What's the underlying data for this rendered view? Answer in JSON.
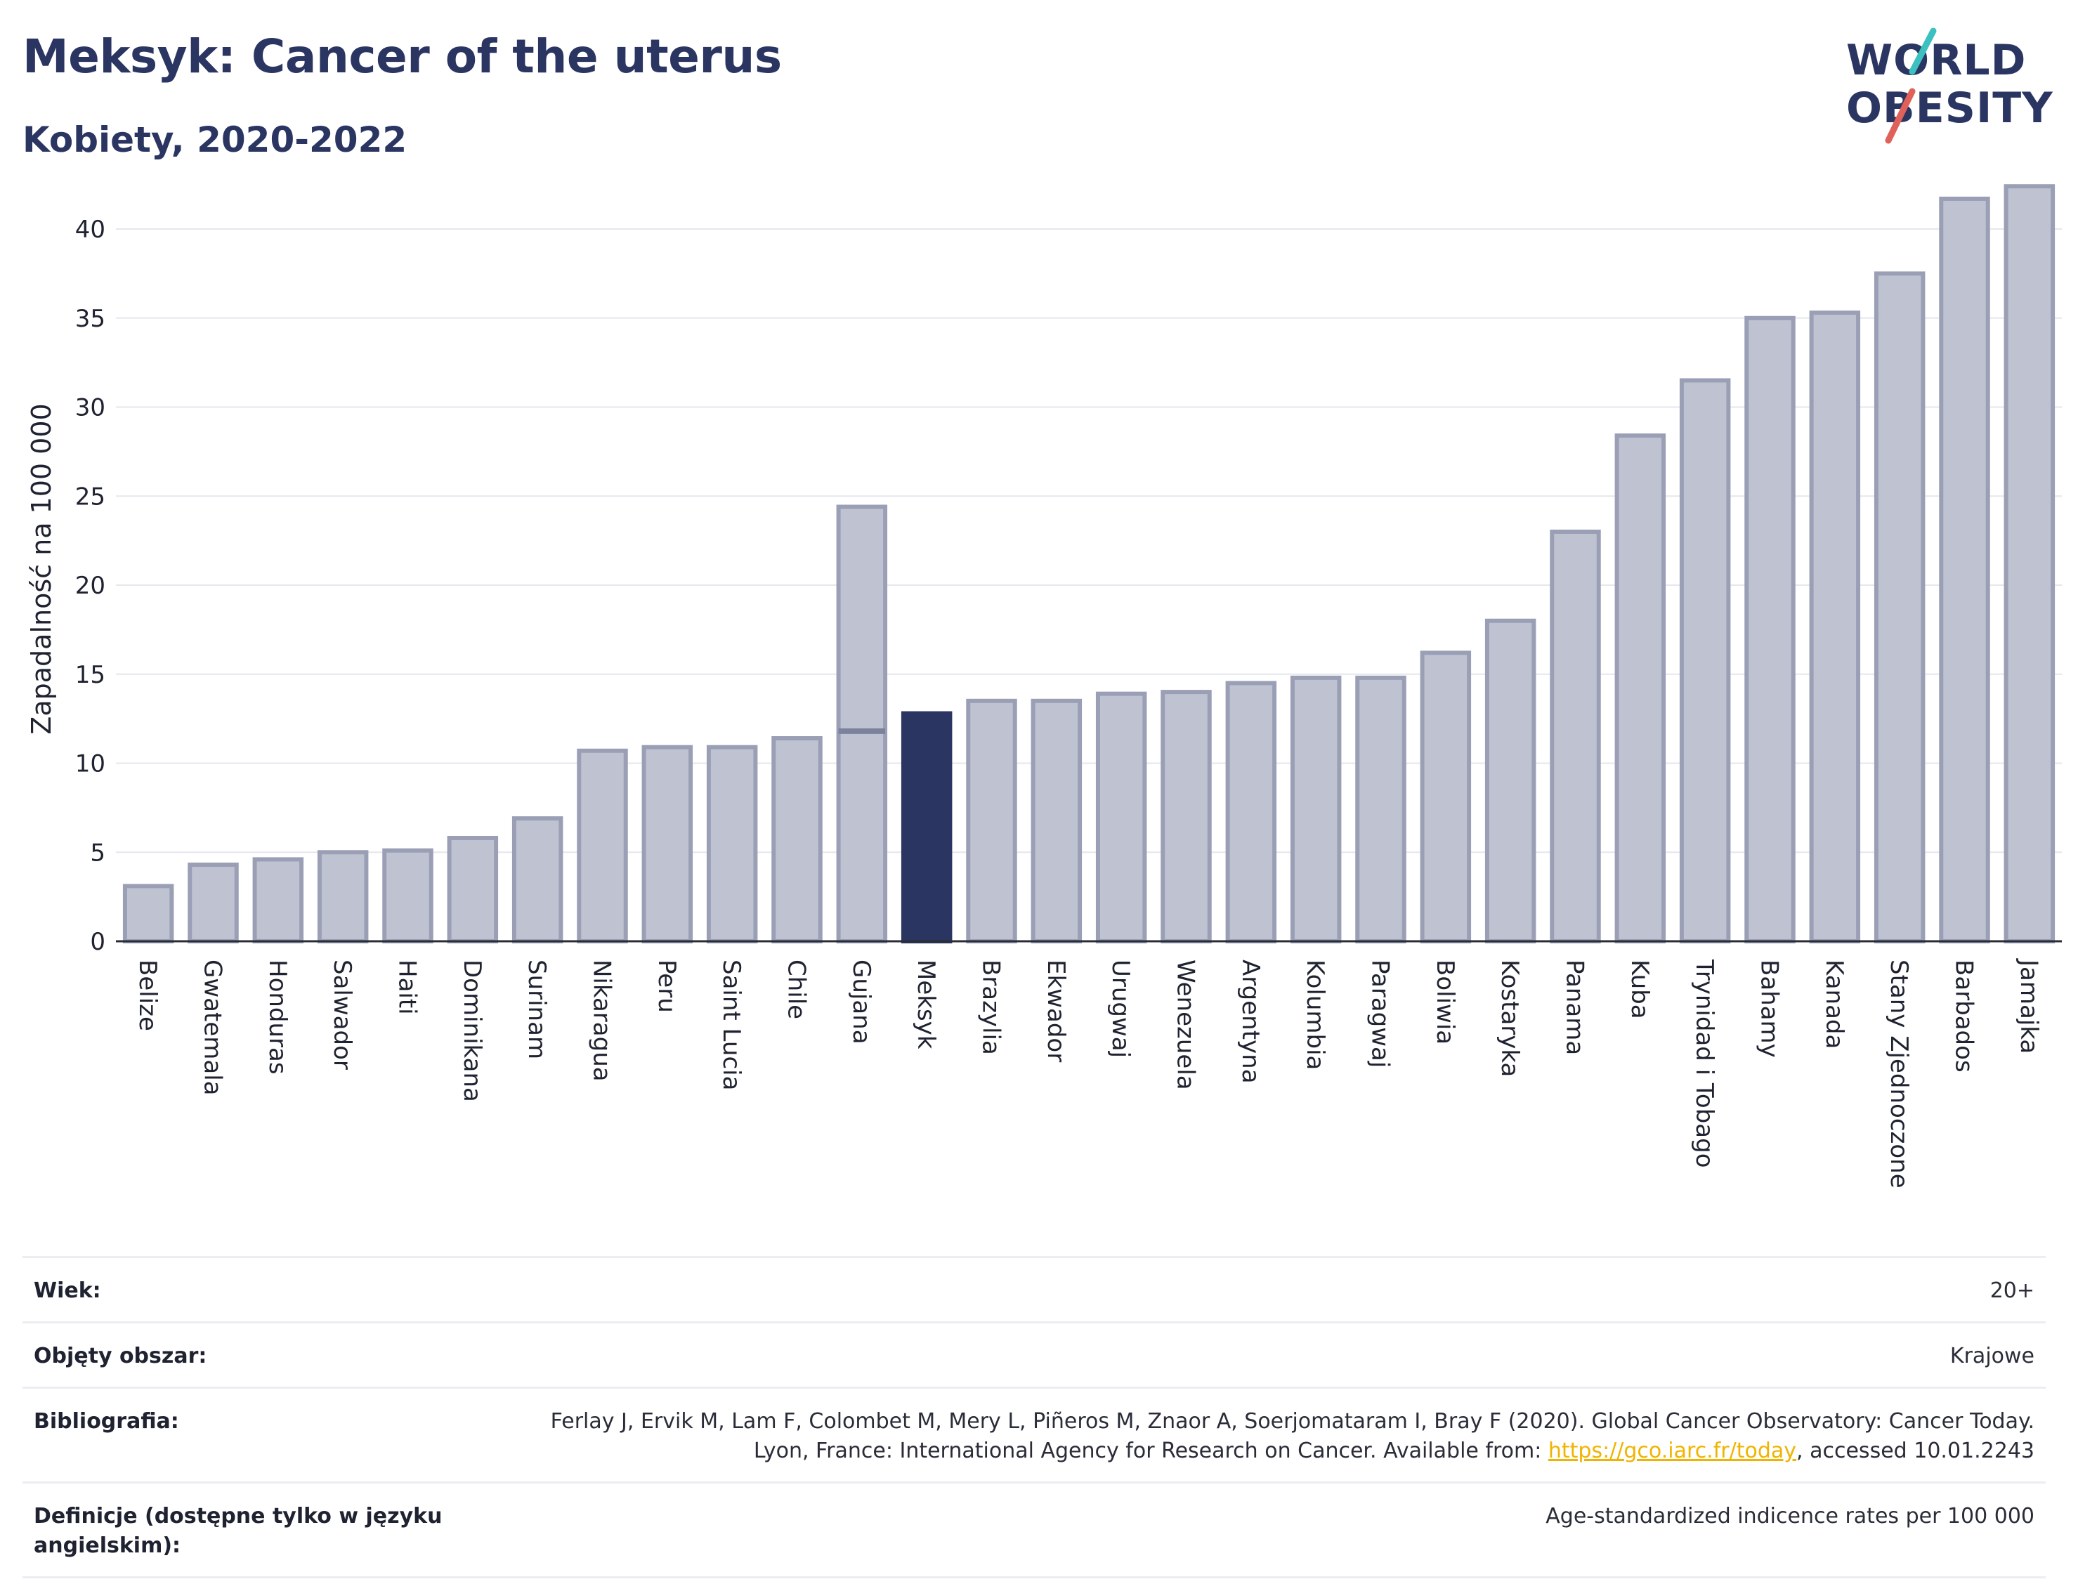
{
  "title": "Meksyk: Cancer of the uterus",
  "subtitle": "Kobiety, 2020-2022",
  "logo": {
    "line1": "WORLD",
    "line2": "OBESITY",
    "accent_teal": "#3cc0c0",
    "accent_red": "#e0605a"
  },
  "colors": {
    "bar": "#bfc3d1",
    "bar_stroke": "#9a9fb6",
    "highlight": "#2b3562",
    "title": "#2b3562"
  },
  "chart_data": {
    "type": "bar",
    "title": "Meksyk: Cancer of the uterus",
    "ylabel": "Zapadalność na 100 000",
    "ylim": [
      0,
      43
    ],
    "yticks": [
      0,
      5,
      10,
      15,
      20,
      25,
      30,
      35,
      40
    ],
    "highlight": "Meksyk",
    "categories": [
      "Belize",
      "Gwatemala",
      "Honduras",
      "Salwador",
      "Haiti",
      "Dominikana",
      "Surinam",
      "Nikaragua",
      "Peru",
      "Saint Lucia",
      "Chile",
      "Gujana",
      "Meksyk",
      "Brazylia",
      "Ekwador",
      "Urugwaj",
      "Wenezuela",
      "Argentyna",
      "Kolumbia",
      "Paragwaj",
      "Boliwia",
      "Kostaryka",
      "Panama",
      "Kuba",
      "Trynidad i Tobago",
      "Bahamy",
      "Kanada",
      "Stany Zjednoczone",
      "Barbados",
      "Jamajka"
    ],
    "values": [
      3.1,
      4.3,
      4.6,
      5.0,
      5.1,
      5.8,
      6.9,
      10.7,
      10.9,
      10.9,
      11.4,
      24.4,
      12.8,
      13.5,
      13.5,
      13.9,
      14.0,
      14.5,
      14.8,
      14.8,
      16.2,
      18.0,
      23.0,
      28.4,
      31.5,
      35.0,
      35.3,
      37.5,
      41.7,
      42.4
    ],
    "inner_markers": [
      {
        "category": "Gujana",
        "value": 11.8
      }
    ],
    "grid": true
  },
  "meta": {
    "age_label": "Wiek:",
    "age_value": "20+",
    "area_label": "Objęty obszar:",
    "area_value": "Krajowe",
    "bib_label": "Bibliografia:",
    "bib_text1": "Ferlay J, Ervik M, Lam F, Colombet M, Mery L, Piñeros M, Znaor A, Soerjomataram I, Bray F (2020). Global Cancer Observatory: Cancer Today. Lyon, France: International Agency for Research on Cancer. Available from: ",
    "bib_link": "https://gco.iarc.fr/today",
    "bib_text2": ", accessed 10.01.2243",
    "def_label": "Definicje (dostępne tylko w języku angielskim):",
    "def_value": "Age-standardized indicence rates per 100 000"
  }
}
